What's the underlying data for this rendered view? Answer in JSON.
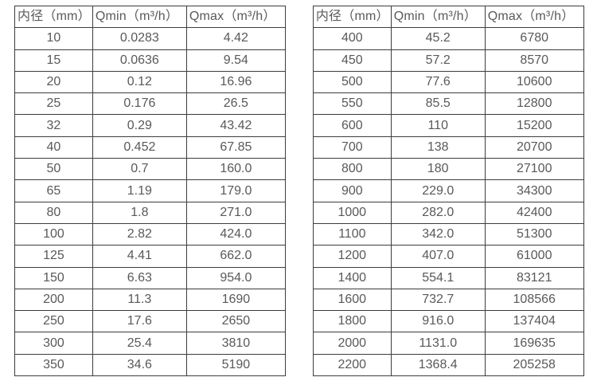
{
  "meta": {
    "background_color": "#ffffff",
    "border_color": "#3d3d3d",
    "text_color": "#595959"
  },
  "chart_data": [
    {
      "type": "table",
      "name": "flow-range-table-small-diameters",
      "columns": [
        "内径（mm）",
        "Qmin（m³/h）",
        "Qmax（m³/h）"
      ],
      "rows": [
        [
          "10",
          "0.0283",
          "4.42"
        ],
        [
          "15",
          "0.0636",
          "9.54"
        ],
        [
          "20",
          "0.12",
          "16.96"
        ],
        [
          "25",
          "0.176",
          "26.5"
        ],
        [
          "32",
          "0.29",
          "43.42"
        ],
        [
          "40",
          "0.452",
          "67.85"
        ],
        [
          "50",
          "0.7",
          "160.0"
        ],
        [
          "65",
          "1.19",
          "179.0"
        ],
        [
          "80",
          "1.8",
          "271.0"
        ],
        [
          "100",
          "2.82",
          "424.0"
        ],
        [
          "125",
          "4.41",
          "662.0"
        ],
        [
          "150",
          "6.63",
          "954.0"
        ],
        [
          "200",
          "11.3",
          "1690"
        ],
        [
          "250",
          "17.6",
          "2650"
        ],
        [
          "300",
          "25.4",
          "3810"
        ],
        [
          "350",
          "34.6",
          "5190"
        ]
      ]
    },
    {
      "type": "table",
      "name": "flow-range-table-large-diameters",
      "columns": [
        "内径（mm）",
        "Qmin（m³/h）",
        "Qmax（m³/h）"
      ],
      "rows": [
        [
          "400",
          "45.2",
          "6780"
        ],
        [
          "450",
          "57.2",
          "8570"
        ],
        [
          "500",
          "77.6",
          "10600"
        ],
        [
          "550",
          "85.5",
          "12800"
        ],
        [
          "600",
          "110",
          "15200"
        ],
        [
          "700",
          "138",
          "20700"
        ],
        [
          "800",
          "180",
          "27100"
        ],
        [
          "900",
          "229.0",
          "34300"
        ],
        [
          "1000",
          "282.0",
          "42400"
        ],
        [
          "1100",
          "342.0",
          "51300"
        ],
        [
          "1200",
          "407.0",
          "61000"
        ],
        [
          "1400",
          "554.1",
          "83121"
        ],
        [
          "1600",
          "732.7",
          "108566"
        ],
        [
          "1800",
          "916.0",
          "137404"
        ],
        [
          "2000",
          "1131.0",
          "169635"
        ],
        [
          "2200",
          "1368.4",
          "205258"
        ]
      ]
    }
  ]
}
